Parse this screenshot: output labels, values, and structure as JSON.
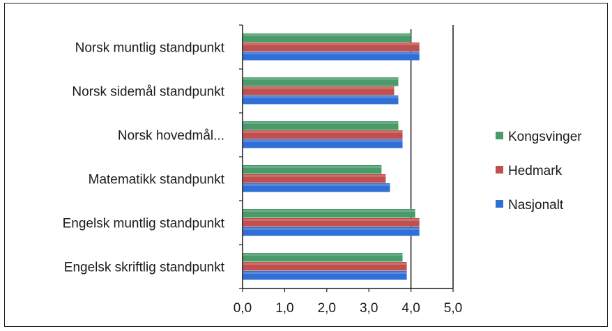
{
  "chart_data": {
    "type": "bar",
    "orientation": "horizontal",
    "title": "",
    "xlabel": "",
    "ylabel": "",
    "categories": [
      "Norsk muntlig standpunkt",
      "Norsk sidemål standpunkt",
      "Norsk hovedmål...",
      "Matematikk standpunkt",
      "Engelsk muntlig standpunkt",
      "Engelsk skriftlig standpunkt"
    ],
    "series": [
      {
        "name": "Kongsvinger",
        "color": "#4a9a6a",
        "values": [
          4.0,
          3.7,
          3.7,
          3.3,
          4.1,
          3.8
        ]
      },
      {
        "name": "Hedmark",
        "color": "#c0504d",
        "values": [
          4.2,
          3.6,
          3.8,
          3.4,
          4.2,
          3.9
        ]
      },
      {
        "name": "Nasjonalt",
        "color": "#2f6fd6",
        "values": [
          4.2,
          3.7,
          3.8,
          3.5,
          4.2,
          3.9
        ]
      }
    ],
    "xlim": [
      0,
      5
    ],
    "xticks": [
      "0,0",
      "1,0",
      "2,0",
      "3,0",
      "4,0",
      "5,0"
    ],
    "grid": false,
    "legend_position": "right"
  }
}
